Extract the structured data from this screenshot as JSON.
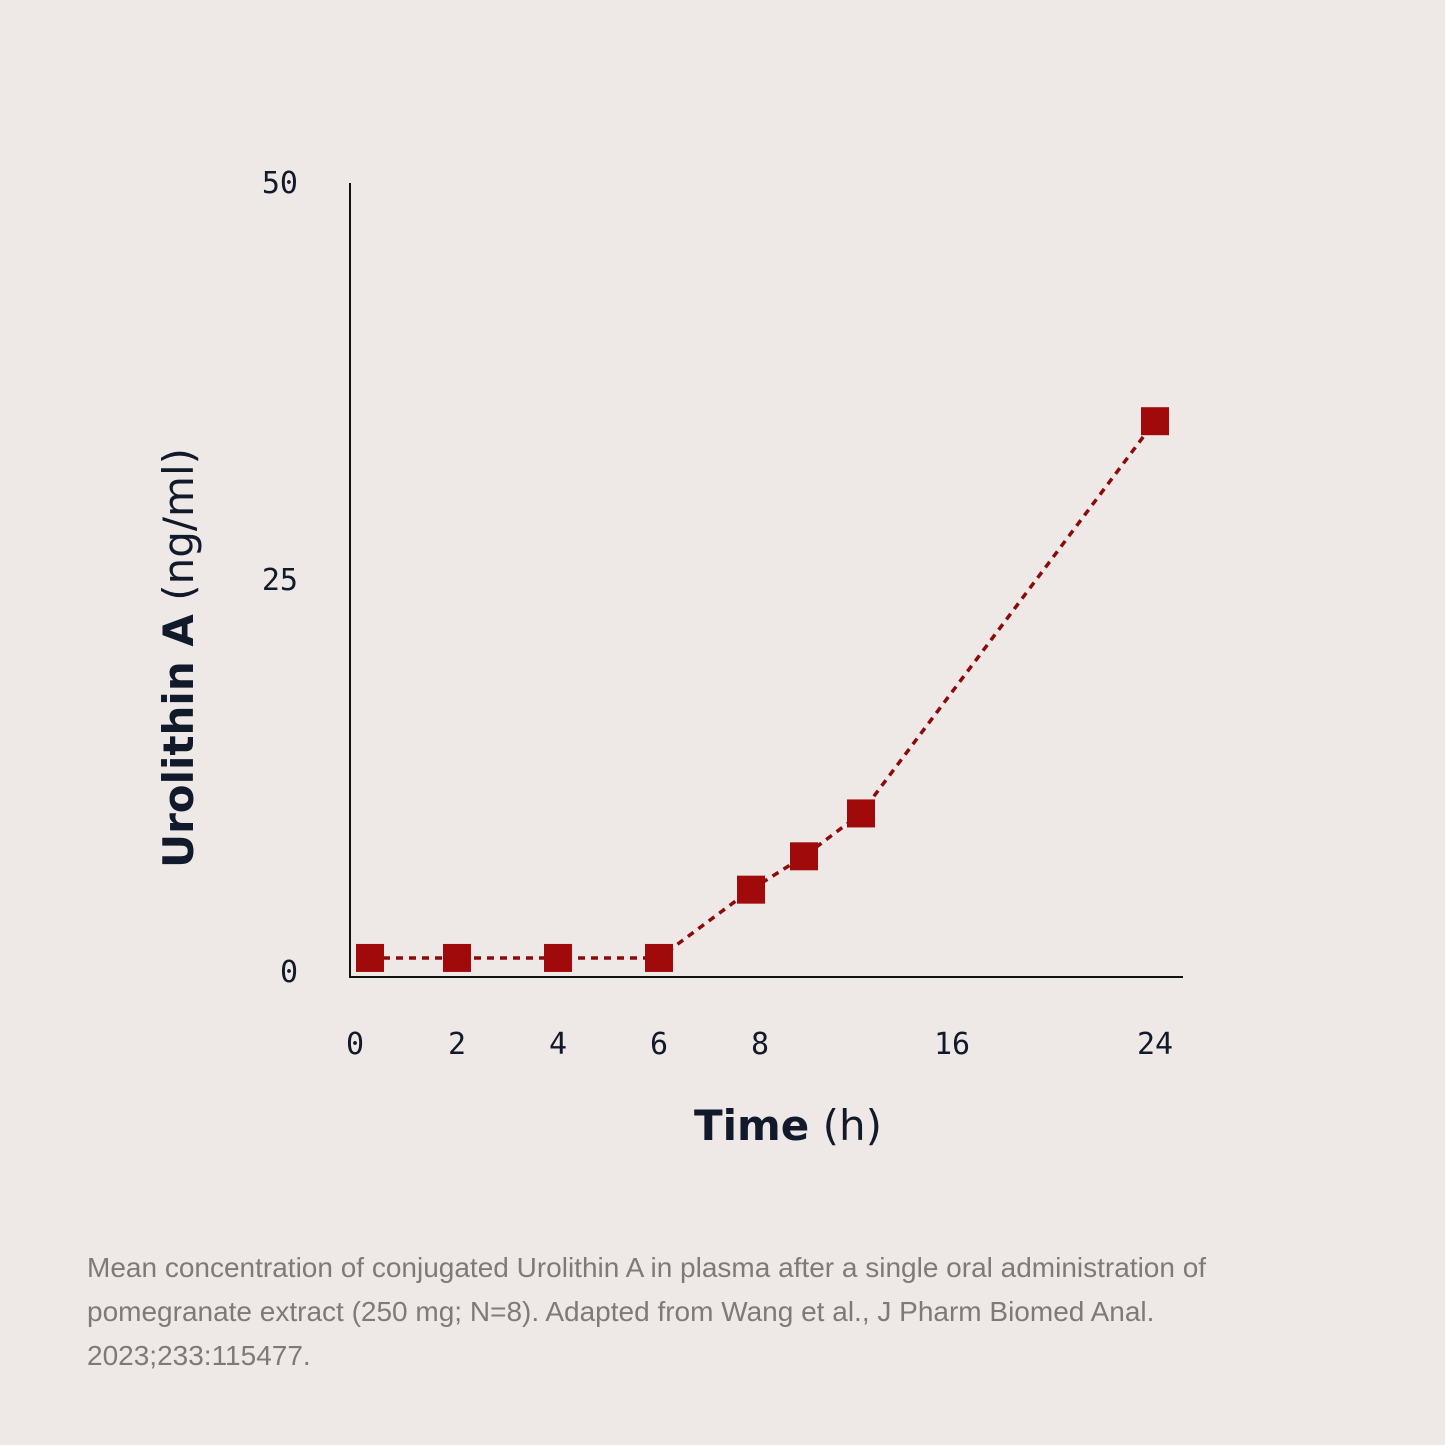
{
  "chart_data": {
    "type": "line",
    "x_ticks": [
      "0",
      "2",
      "4",
      "6",
      "8",
      "16",
      "24"
    ],
    "y_ticks": [
      "0",
      "25",
      "50"
    ],
    "ylim": [
      0,
      50
    ],
    "xlabel": {
      "bold": "Time",
      "unit": "(h)"
    },
    "ylabel": {
      "bold": "Urolithin A",
      "unit": "(ng/ml)"
    },
    "series": [
      {
        "x": [
          "0",
          "2",
          "4",
          "6",
          "8",
          "10",
          "12",
          "24"
        ],
        "y": [
          1.2,
          1.2,
          1.2,
          1.2,
          5.5,
          7.6,
          10.3,
          35.0
        ],
        "marker": "square",
        "line_style": "dotted"
      }
    ],
    "grid": false,
    "colors": {
      "series": "#A00A0A",
      "line": "#8B0A0A",
      "axis": "#111111",
      "text": "#111A2B",
      "background": "#EEE9E6"
    }
  },
  "caption": "Mean concentration of conjugated Urolithin A in plasma after a single oral administration of pomegranate extract (250 mg; N=8). Adapted from Wang et al., J Pharm Biomed Anal. 2023;233:115477."
}
